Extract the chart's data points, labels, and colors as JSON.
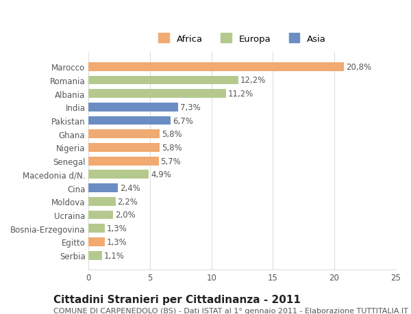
{
  "categories": [
    "Marocco",
    "Romania",
    "Albania",
    "India",
    "Pakistan",
    "Ghana",
    "Nigeria",
    "Senegal",
    "Macedonia d/N.",
    "Cina",
    "Moldova",
    "Ucraina",
    "Bosnia-Erzegovina",
    "Egitto",
    "Serbia"
  ],
  "values": [
    20.8,
    12.2,
    11.2,
    7.3,
    6.7,
    5.8,
    5.8,
    5.7,
    4.9,
    2.4,
    2.2,
    2.0,
    1.3,
    1.3,
    1.1
  ],
  "labels": [
    "20,8%",
    "12,2%",
    "11,2%",
    "7,3%",
    "6,7%",
    "5,8%",
    "5,8%",
    "5,7%",
    "4,9%",
    "2,4%",
    "2,2%",
    "2,0%",
    "1,3%",
    "1,3%",
    "1,1%"
  ],
  "continents": [
    "Africa",
    "Europa",
    "Europa",
    "Asia",
    "Asia",
    "Africa",
    "Africa",
    "Africa",
    "Europa",
    "Asia",
    "Europa",
    "Europa",
    "Europa",
    "Africa",
    "Europa"
  ],
  "colors": {
    "Africa": "#F0AA72",
    "Europa": "#B5C98E",
    "Asia": "#6B8DC4"
  },
  "legend_labels": [
    "Africa",
    "Europa",
    "Asia"
  ],
  "title": "Cittadini Stranieri per Cittadinanza - 2011",
  "subtitle": "COMUNE DI CARPENEDOLO (BS) - Dati ISTAT al 1° gennaio 2011 - Elaborazione TUTTITALIA.IT",
  "xlim": [
    0,
    25
  ],
  "xticks": [
    0,
    5,
    10,
    15,
    20,
    25
  ],
  "bg_color": "#ffffff",
  "grid_color": "#dddddd",
  "bar_height": 0.65,
  "label_fontsize": 8.5,
  "tick_fontsize": 8.5,
  "title_fontsize": 11,
  "subtitle_fontsize": 8
}
